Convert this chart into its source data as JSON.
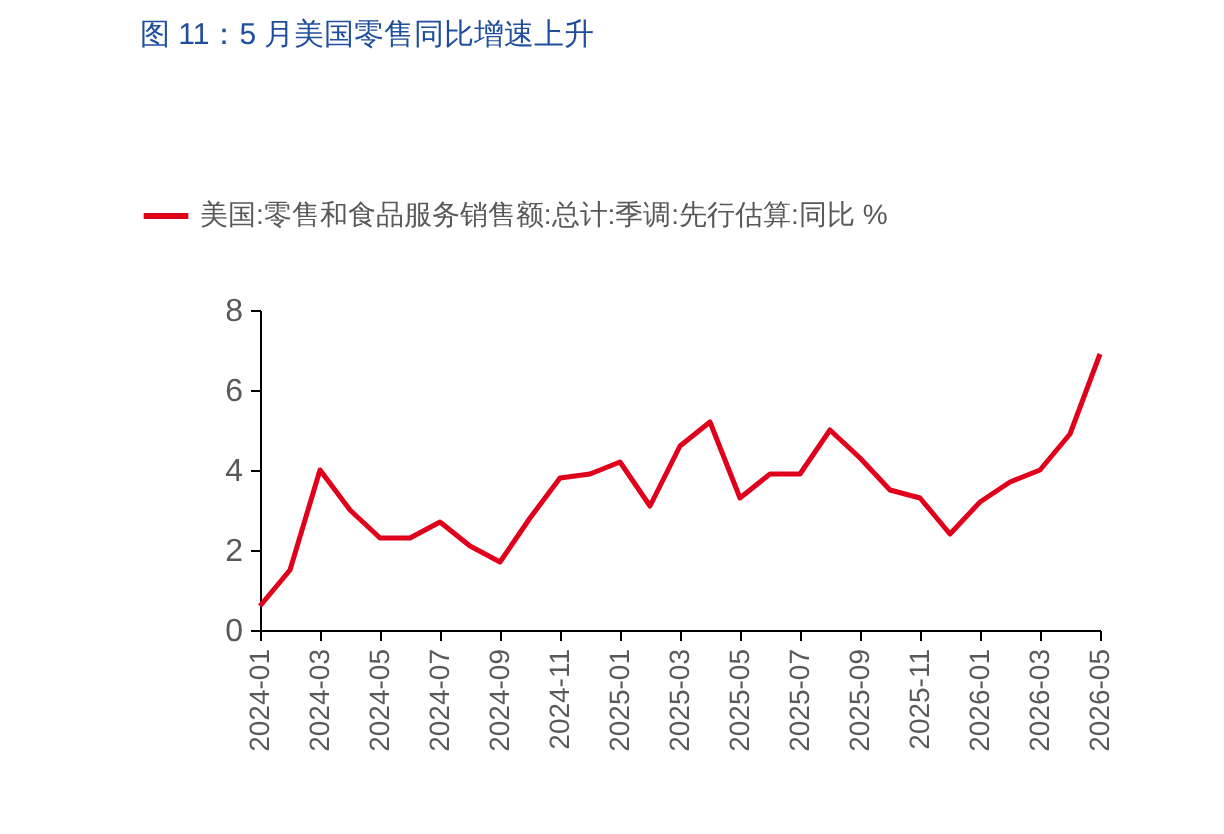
{
  "chart_data": {
    "type": "line",
    "title": "图 11：5 月美国零售同比增速上升",
    "categories": [
      "2024-01",
      null,
      "2024-03",
      null,
      "2024-05",
      null,
      "2024-07",
      null,
      "2024-09",
      null,
      "2024-11",
      null,
      "2025-01",
      null,
      "2025-03",
      null,
      "2025-05",
      null,
      "2025-07",
      null,
      "2025-09",
      null,
      "2025-11",
      null,
      "2026-01",
      null,
      "2026-03",
      null,
      "2026-05"
    ],
    "series": [
      {
        "name": "美国:零售和食品服务销售额:总计:季调:先行估算:同比 %",
        "color": "#e0001b",
        "values": [
          0.6,
          1.5,
          4.0,
          3.0,
          2.3,
          2.3,
          2.7,
          2.1,
          1.7,
          2.8,
          3.8,
          3.9,
          4.2,
          3.1,
          4.6,
          5.2,
          3.3,
          3.9,
          3.9,
          5.0,
          4.3,
          3.5,
          3.3,
          2.4,
          3.2,
          3.7,
          4.0,
          4.9,
          6.9
        ]
      }
    ],
    "ylim": [
      0,
      8
    ],
    "yticks": [
      0,
      2,
      4,
      6,
      8
    ],
    "grid": false,
    "legend": "top left",
    "marker": "none",
    "line_style": "solid"
  }
}
